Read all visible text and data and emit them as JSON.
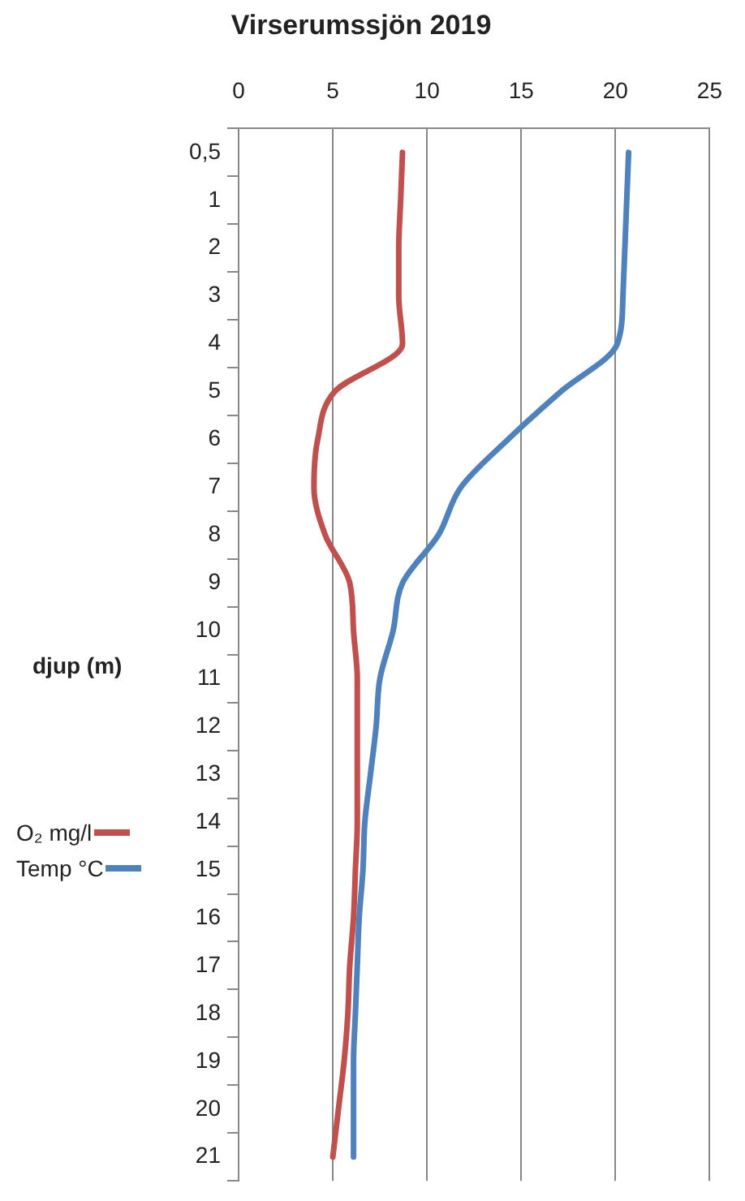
{
  "chart_data": {
    "type": "line",
    "orientation": "horizontal",
    "title": "Virserumssjön 2019",
    "ylabel": "djup (m)",
    "categories": [
      "0,5",
      "1",
      "2",
      "3",
      "4",
      "5",
      "6",
      "7",
      "8",
      "9",
      "10",
      "11",
      "12",
      "13",
      "14",
      "15",
      "16",
      "17",
      "18",
      "19",
      "20",
      "21"
    ],
    "xlim": [
      0,
      25
    ],
    "xticks": [
      0,
      5,
      10,
      15,
      20,
      25
    ],
    "grid": "x",
    "legend": "left",
    "marker": "none",
    "line_style": "solid",
    "series": [
      {
        "name": "O₂ mg/l",
        "color": "#c0504d",
        "values": [
          8.7,
          8.6,
          8.5,
          8.5,
          8.7,
          5.1,
          4.2,
          4.0,
          4.6,
          5.9,
          6.1,
          6.3,
          6.3,
          6.3,
          6.3,
          6.2,
          6.1,
          5.9,
          5.8,
          5.6,
          5.3,
          5.0
        ]
      },
      {
        "name": "Temp °C",
        "color": "#4f81bd",
        "values": [
          20.7,
          20.6,
          20.5,
          20.4,
          20.1,
          17.1,
          14.3,
          11.8,
          10.6,
          8.7,
          8.2,
          7.5,
          7.3,
          7.0,
          6.7,
          6.6,
          6.4,
          6.3,
          6.2,
          6.1,
          6.1,
          6.1
        ]
      }
    ]
  }
}
